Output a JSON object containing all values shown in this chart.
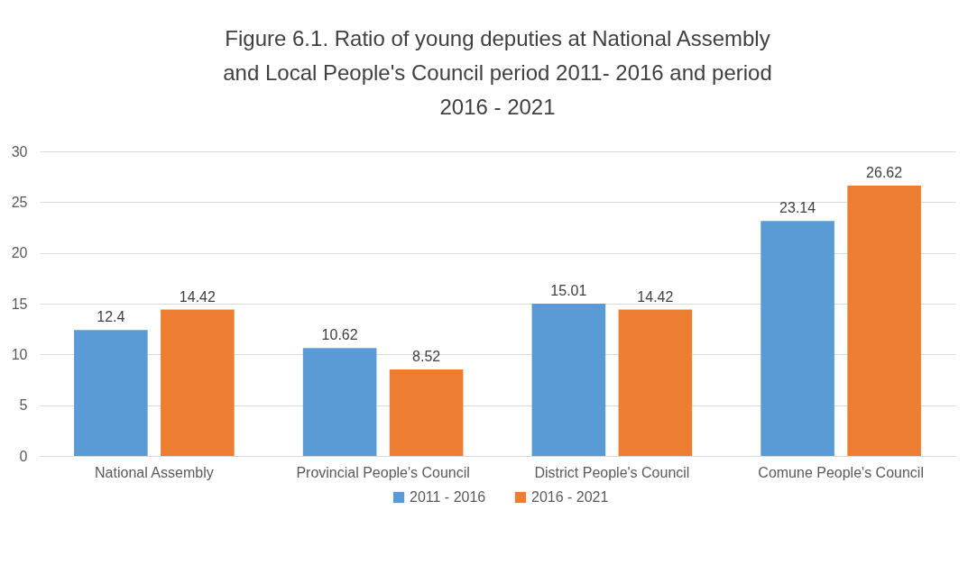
{
  "chart_data": {
    "type": "bar",
    "title": "Figure 6.1. Ratio of young deputies at National Assembly and Local People's Council period 2011- 2016 and period 2016 - 2021",
    "categories": [
      "National Assembly",
      "Provincial People's Council",
      "District People's Council",
      "Comune People's Council"
    ],
    "series": [
      {
        "name": "2011 - 2016",
        "color": "#5b9bd5",
        "values": [
          12.4,
          10.62,
          15.01,
          23.14
        ]
      },
      {
        "name": "2016 - 2021",
        "color": "#ed7d31",
        "values": [
          14.42,
          8.52,
          14.42,
          26.62
        ]
      }
    ],
    "ylim": [
      0,
      30
    ],
    "yticks": [
      0,
      5,
      10,
      15,
      20,
      25,
      30
    ],
    "grid": "y",
    "legend": "bottom",
    "data_labels": true
  }
}
